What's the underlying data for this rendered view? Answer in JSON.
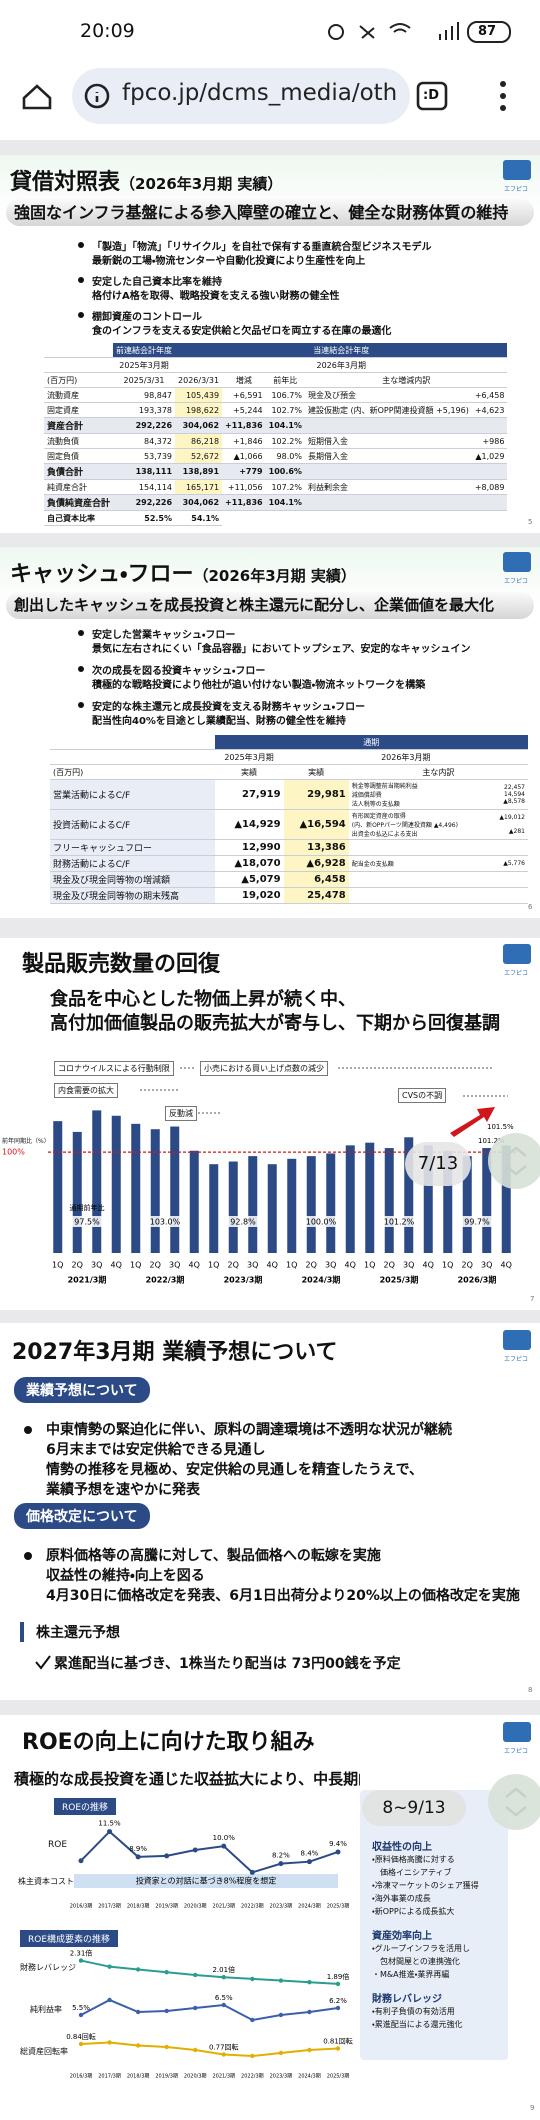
{
  "status_bar": {
    "time": "20:09",
    "battery": "87"
  },
  "browser": {
    "url": "fpco.jp/dcms_media/oth",
    "tab_icon": ":D"
  },
  "logo": "エフピコ",
  "balance_sheet": {
    "title": "貸借対照表",
    "title_sub": "（2026年3月期 実績）",
    "headline": "強固なインフラ基盤による参入障壁の確立と、健全な財務体質の維持",
    "bullets": [
      {
        "head": "「製造」「物流」「リサイクル」を自社で保有する垂直統合型ビジネスモデル",
        "body": "最新鋭の工場・物流センターや自動化投資により生産性を向上"
      },
      {
        "head": "安定した自己資本比率を維持",
        "body": "格付けA格を取得、戦略投資を支える強い財務の健全性"
      },
      {
        "head": "棚卸資産のコントロール",
        "body": "食のインフラを支える安定供給と欠品ゼロを両立する在庫の最適化"
      }
    ],
    "table": {
      "group_headers": [
        "前連結会計年度",
        "当連結会計年度"
      ],
      "period_headers": [
        "2025年3月期",
        "2026年3月期"
      ],
      "unit": "(百万円)",
      "columns": [
        "2025/3/31",
        "2026/3/31",
        "増減",
        "前年比",
        "主な増減内訳"
      ],
      "rows": [
        [
          "流動資産",
          "98,847",
          "105,439",
          "+6,591",
          "106.7%",
          "現金及び預金",
          "+6,458"
        ],
        [
          "固定資産",
          "193,378",
          "198,622",
          "+5,244",
          "102.7%",
          "建設仮勘定 (内、新OPP関連投資額 +5,196)",
          "+4,623"
        ],
        [
          "資産合計",
          "292,226",
          "304,062",
          "+11,836",
          "104.1%"
        ],
        [
          "流動負債",
          "84,372",
          "86,218",
          "+1,846",
          "102.2%",
          "短期借入金",
          "+986"
        ],
        [
          "固定負債",
          "53,739",
          "52,672",
          "▲1,066",
          "98.0%",
          "長期借入金",
          "▲1,029"
        ],
        [
          "負債合計",
          "138,111",
          "138,891",
          "+779",
          "100.6%"
        ],
        [
          "純資産合計",
          "154,114",
          "165,171",
          "+11,056",
          "107.2%",
          "利益剰余金",
          "+8,089"
        ],
        [
          "負債純資産合計",
          "292,226",
          "304,062",
          "+11,836",
          "104.1%"
        ]
      ],
      "ratio_row": [
        "自己資本比率",
        "52.5%",
        "54.1%"
      ]
    },
    "page": "5"
  },
  "cash_flow": {
    "title": "キャッシュ・フロー",
    "title_sub": "（2026年3月期 実績）",
    "headline": "創出したキャッシュを成長投資と株主還元に配分し、企業価値を最大化",
    "bullets": [
      {
        "head": "安定した営業キャッシュ・フロー",
        "body": "景気に左右されにくい「食品容器」においてトップシェア、安定的なキャッシュイン"
      },
      {
        "head": "次の成長を図る投資キャッシュ・フロー",
        "body": "積極的な戦略投資により他社が追い付けない製造・物流ネットワークを構築"
      },
      {
        "head": "安定的な株主還元と成長投資を支える財務キャッシュ・フロー",
        "body": "配当性向40%を目途とし業績配当、財務の健全性を維持"
      }
    ],
    "table": {
      "group_header": "通期",
      "period_headers": [
        "2025年3月期",
        "2026年3月期"
      ],
      "unit": "(百万円)",
      "sub_headers": [
        "実績",
        "実績",
        "主な内訳"
      ],
      "rows": [
        {
          "label": "営業活動によるC/F",
          "values": [
            "27,919",
            "29,981"
          ],
          "details": [
            {
              "text": "税金等調整前当期純利益",
              "value": "22,457"
            },
            {
              "text": "減価償却費",
              "value": "14,594"
            },
            {
              "text": "法人税等の支払額",
              "value": "▲8,578"
            }
          ]
        },
        {
          "label": "投資活動によるC/F",
          "values": [
            "▲14,929",
            "▲16,594"
          ],
          "details": [
            {
              "text": "有形固定資産の取得",
              "value": "▲19,012"
            },
            {
              "text": "(内、新OPPパーツ関連投資額 ▲4,496)"
            },
            {
              "text": "出資金の払込による支出",
              "value": "▲281"
            }
          ]
        },
        {
          "label": "フリーキャッシュフロー",
          "values": [
            "12,990",
            "13,386"
          ]
        },
        {
          "label": "財務活動によるC/F",
          "values": [
            "▲18,070",
            "▲6,928"
          ],
          "details": [
            {
              "text": "配当金の支払額",
              "value": "▲5,776"
            }
          ]
        },
        {
          "label": "現金及び現金同等物の増減額",
          "values": [
            "▲5,079",
            "6,458"
          ]
        },
        {
          "label": "現金及び現金同等物の期末残高",
          "values": [
            "19,020",
            "25,478"
          ]
        }
      ]
    },
    "page": "6"
  },
  "sales_volume": {
    "title": "製品販売数量の回復",
    "headline": [
      "食品を中心とした物価上昇が続く中、",
      "高付加価値製品の販売拡大が寄与し、下期から回復基調"
    ],
    "page": "7",
    "page_indicator": "7/13",
    "chart": {
      "type": "bar",
      "y_label": "前年同期比（%）",
      "ylim": [
        85,
        107
      ],
      "yticks": [
        {
          "value": 100,
          "label": "100%"
        }
      ],
      "color": "#2c4a86",
      "categories": [
        "1Q",
        "2Q",
        "3Q",
        "4Q",
        "1Q",
        "2Q",
        "3Q",
        "4Q",
        "1Q",
        "2Q",
        "3Q",
        "4Q",
        "1Q",
        "2Q",
        "3Q",
        "4Q",
        "1Q",
        "2Q",
        "3Q",
        "4Q",
        "1Q",
        "2Q",
        "3Q",
        "4Q"
      ],
      "values": [
        104.6,
        103,
        106.2,
        105.4,
        104.2,
        103.4,
        103.8,
        100.2,
        98.2,
        98.6,
        99.4,
        98.2,
        99,
        99.4,
        99.8,
        101,
        101.4,
        100.6,
        102.2,
        101,
        100.2,
        99.4,
        100.6,
        101
      ],
      "years": [
        "2021/3期",
        "2022/3期",
        "2023/3期",
        "2024/3期",
        "2025/3期",
        "2026/3期"
      ],
      "year_labels": [
        "97.5%",
        "103.0%",
        "92.8%",
        "100.0%",
        "101.2%",
        "99.7%"
      ],
      "year_label_title": "通期前年比",
      "annotations": [
        "コロナウイルスによる行動制限",
        "内食需要の拡大",
        "小売における買い上げ点数の減少",
        "反動減",
        "CVSの不調"
      ],
      "recent_labels": [
        "101.5%",
        "101.2%"
      ]
    }
  },
  "forecast": {
    "title": "2027年3月期 業績予想について",
    "sections": [
      {
        "label": "業績予想について",
        "lines": [
          "中東情勢の緊迫化に伴い、原料の調達環境は不透明な状況が継続",
          "6月末までは安定供給できる見通し",
          "情勢の推移を見極め、安定供給の見通しを精査したうえで、",
          "業績予想を速やかに発表"
        ]
      },
      {
        "label": "価格改定について",
        "lines": [
          "原料価格等の高騰に対して、製品価格への転嫁を実施",
          "収益性の維持・向上を図る",
          "4月30日に価格改定を発表、6月1日出荷分より20%以上の価格改定を実施"
        ]
      }
    ],
    "dividend_title": "株主還元予想",
    "dividend_text": "累進配当に基づき、1株当たり配当は 73円00銭を予定",
    "page": "8"
  },
  "roe": {
    "title": "ROEの向上に向けた取り組み",
    "headline": "積極的な成長投資を通じた収益拡大により、中長期的なROE向上を図",
    "page_indicator": "8~9/13",
    "page": "9",
    "roe_chart": {
      "type": "line",
      "title": "ROEの推移",
      "series_label": "ROE",
      "cost_label": "株主資本コスト",
      "cost_text": "投資家との対話に基づき8%程度を想定",
      "color": "#2c4a86",
      "ylim": [
        6,
        13
      ],
      "categories": [
        "2016/3期",
        "2017/3期",
        "2018/3期",
        "2019/3期",
        "2020/3期",
        "2021/3期",
        "2022/3期",
        "2023/3期",
        "2024/3期",
        "2025/3期"
      ],
      "values": [
        8.5,
        11.5,
        8.9,
        9.0,
        9.6,
        10.0,
        7.3,
        8.2,
        8.4,
        9.4
      ],
      "value_labels": [
        null,
        "11.5%",
        "8.9%",
        null,
        null,
        "10.0%",
        null,
        "8.2%",
        "8.4%",
        "9.4%"
      ]
    },
    "factor_chart": {
      "type": "line",
      "title": "ROE構成要素の推移",
      "categories": [
        "2016/3期",
        "2017/3期",
        "2018/3期",
        "2019/3期",
        "2020/3期",
        "2021/3期",
        "2022/3期",
        "2023/3期",
        "2024/3期",
        "2025/3期"
      ],
      "series": [
        {
          "name": "財務レバレッジ",
          "color": "#2a9d8f",
          "ylim": [
            1.6,
            2.5
          ],
          "values": [
            2.31,
            2.2,
            2.15,
            2.1,
            2.05,
            2.01,
            1.98,
            1.95,
            1.92,
            1.89
          ],
          "value_labels": [
            "2.31倍",
            null,
            null,
            null,
            null,
            "2.01倍",
            null,
            null,
            null,
            "1.89倍"
          ]
        },
        {
          "name": "純利益率",
          "color": "#3b5fa8",
          "ylim": [
            4,
            8
          ],
          "values": [
            5.5,
            7.0,
            5.8,
            5.9,
            6.2,
            6.5,
            5.0,
            5.5,
            5.8,
            6.2
          ],
          "value_labels": [
            "5.5%",
            null,
            null,
            null,
            null,
            "6.5%",
            null,
            null,
            null,
            "6.2%"
          ]
        },
        {
          "name": "総資産回転率",
          "color": "#e0b000",
          "ylim": [
            0.7,
            0.9
          ],
          "values": [
            0.84,
            0.85,
            0.83,
            0.82,
            0.8,
            0.77,
            0.76,
            0.78,
            0.8,
            0.81
          ],
          "value_labels": [
            "0.84回転",
            null,
            null,
            null,
            null,
            "0.77回転",
            null,
            null,
            null,
            "0.81回転"
          ]
        }
      ]
    },
    "measures": [
      {
        "title": "収益性の向上",
        "items": [
          "・原料価格高騰に対する",
          "　価格イニシアティブ",
          "・冷凍マーケットのシェア獲得",
          "・海外事業の成長",
          "・新OPPによる成長拡大"
        ]
      },
      {
        "title": "資産効率向上",
        "items": [
          "・グループインフラを活用し",
          "　包材間屋との連携強化",
          "・M&A推進・業界再編"
        ]
      },
      {
        "title": "財務レバレッジ",
        "items": [
          "・有利子負債の有効活用",
          "・累進配当による還元強化"
        ]
      }
    ]
  }
}
